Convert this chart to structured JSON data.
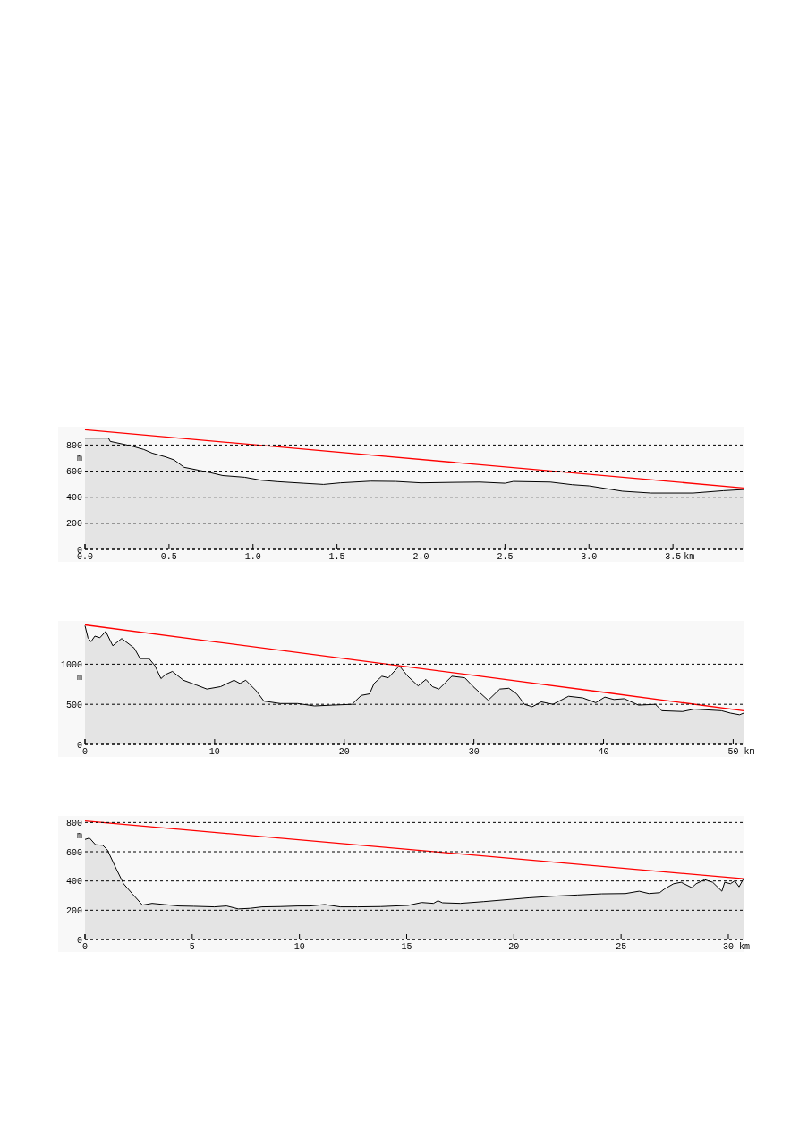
{
  "chart_data": [
    {
      "type": "area",
      "xlabel": "km",
      "ylabel": "m",
      "xlim": [
        0,
        3.92
      ],
      "ylim": [
        0,
        940
      ],
      "xticks": [
        {
          "value": 0,
          "label": "0.0"
        },
        {
          "value": 0.5,
          "label": "0.5"
        },
        {
          "value": 1,
          "label": "1.0"
        },
        {
          "value": 1.5,
          "label": "1.5"
        },
        {
          "value": 2,
          "label": "2.0"
        },
        {
          "value": 2.5,
          "label": "2.5"
        },
        {
          "value": 3,
          "label": "3.0"
        },
        {
          "value": 3.5,
          "label": "3.5"
        }
      ],
      "yticks": [
        0,
        200,
        400,
        600,
        800
      ],
      "grid": "y",
      "series": [
        {
          "type": "area",
          "color": "#000000",
          "x": [
            0,
            0.14,
            0.15,
            0.27,
            0.35,
            0.4,
            0.48,
            0.53,
            0.59,
            0.68,
            0.75,
            0.82,
            0.95,
            1.05,
            1.15,
            1.3,
            1.42,
            1.52,
            1.7,
            1.85,
            2.0,
            2.2,
            2.35,
            2.5,
            2.55,
            2.77,
            2.9,
            3.0,
            3.2,
            3.37,
            3.62,
            3.8,
            3.92
          ],
          "values": [
            853,
            853,
            828,
            795,
            766,
            738,
            709,
            686,
            629,
            606,
            587,
            566,
            553,
            530,
            519,
            507,
            498,
            510,
            523,
            521,
            510,
            514,
            516,
            507,
            521,
            516,
            496,
            487,
            446,
            432,
            432,
            450,
            459
          ]
        },
        {
          "type": "line",
          "color": "#ff0000",
          "x": [
            0,
            3.92
          ],
          "values": [
            917,
            471
          ]
        }
      ]
    },
    {
      "type": "area",
      "xlabel": "km",
      "ylabel": "m",
      "xlim": [
        0,
        50.8
      ],
      "ylim": [
        0,
        1540
      ],
      "xticks": [
        0,
        10,
        20,
        30,
        40,
        50
      ],
      "yticks": [
        0,
        500,
        1000
      ],
      "grid": "y",
      "series": [
        {
          "type": "area",
          "color": "#000000",
          "x": [
            0,
            0.23,
            0.46,
            0.76,
            1.15,
            1.6,
            2.14,
            2.83,
            3.8,
            4.25,
            4.94,
            5.4,
            5.86,
            6.2,
            6.74,
            7.59,
            8.6,
            9.4,
            10.46,
            11.5,
            11.95,
            12.4,
            13.2,
            13.8,
            15.06,
            16.4,
            17.7,
            19.1,
            20.6,
            21.3,
            21.95,
            22.3,
            22.9,
            23.4,
            24.25,
            24.9,
            25.7,
            26.3,
            26.8,
            27.3,
            28.3,
            29.3,
            29.95,
            31.1,
            32.0,
            32.7,
            33.3,
            33.9,
            34.5,
            35.2,
            36.1,
            37.3,
            38.4,
            39.4,
            40.1,
            40.8,
            41.6,
            42.7,
            44.0,
            44.5,
            46.1,
            47.0,
            49.1,
            49.8,
            50.5,
            50.8
          ],
          "values": [
            1480,
            1330,
            1280,
            1350,
            1330,
            1410,
            1230,
            1320,
            1200,
            1070,
            1070,
            980,
            820,
            870,
            910,
            800,
            740,
            690,
            720,
            800,
            760,
            800,
            670,
            540,
            510,
            510,
            480,
            490,
            500,
            610,
            630,
            760,
            850,
            830,
            980,
            850,
            730,
            810,
            720,
            690,
            850,
            830,
            720,
            550,
            690,
            700,
            630,
            500,
            470,
            530,
            500,
            600,
            580,
            520,
            590,
            560,
            570,
            490,
            500,
            420,
            410,
            440,
            420,
            390,
            370,
            390
          ]
        },
        {
          "type": "line",
          "color": "#ff0000",
          "x": [
            0,
            10,
            20,
            30,
            40,
            50.8
          ],
          "values": [
            1490,
            1280,
            1070,
            860,
            650,
            420
          ]
        }
      ]
    },
    {
      "type": "area",
      "xlabel": "km",
      "ylabel": "m",
      "xlim": [
        0,
        30.71
      ],
      "ylim": [
        0,
        845
      ],
      "xticks": [
        0,
        5,
        10,
        15,
        20,
        25,
        30
      ],
      "yticks": [
        0,
        200,
        400,
        600,
        800
      ],
      "grid": "y",
      "series": [
        {
          "type": "area",
          "color": "#000000",
          "x": [
            0,
            0.21,
            0.49,
            0.83,
            1.04,
            1.46,
            1.8,
            2.22,
            2.68,
            3.13,
            3.68,
            4.38,
            5.07,
            6.04,
            6.6,
            7.15,
            7.7,
            8.26,
            9.1,
            9.93,
            10.5,
            11.18,
            11.9,
            12.7,
            13.8,
            15.07,
            15.7,
            16.25,
            16.46,
            16.67,
            17.5,
            18.6,
            19.9,
            20.7,
            21.85,
            22.97,
            24.1,
            25.2,
            25.84,
            26.3,
            26.8,
            27.03,
            27.45,
            27.8,
            28.3,
            28.5,
            28.9,
            29.27,
            29.7,
            29.83,
            30.1,
            30.3,
            30.5,
            30.71
          ],
          "values": [
            684,
            694,
            648,
            644,
            613,
            482,
            381,
            310,
            235,
            247,
            239,
            229,
            227,
            223,
            229,
            209,
            213,
            223,
            225,
            229,
            229,
            239,
            223,
            223,
            225,
            233,
            253,
            247,
            265,
            251,
            247,
            259,
            275,
            285,
            296,
            304,
            312,
            314,
            330,
            314,
            320,
            346,
            381,
            391,
            354,
            381,
            409,
            391,
            330,
            391,
            381,
            401,
            360,
            415
          ]
        },
        {
          "type": "line",
          "color": "#ff0000",
          "x": [
            0,
            30.71
          ],
          "values": [
            810,
            415
          ]
        }
      ]
    }
  ]
}
